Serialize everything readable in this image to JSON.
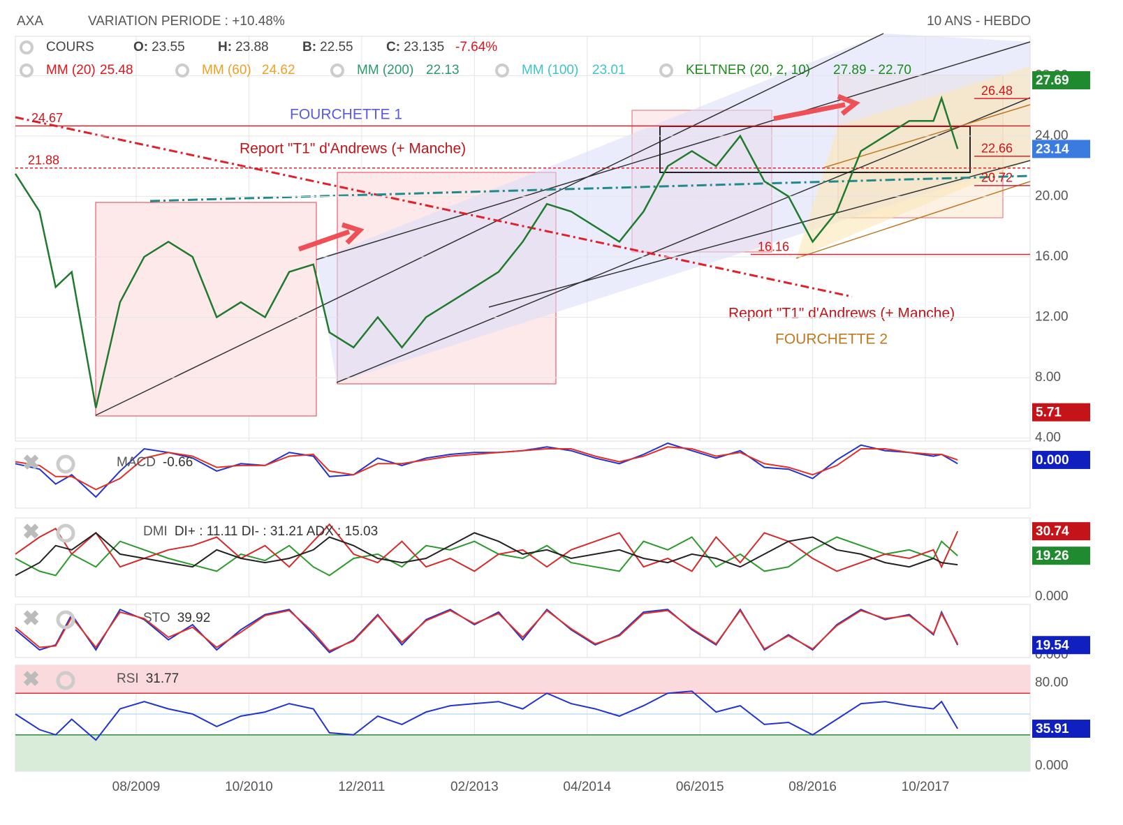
{
  "header": {
    "symbol": "AXA",
    "variation": "VARIATION PERIODE : +10.48%",
    "period": "10 ANS - HEBDO"
  },
  "legend": {
    "cours": {
      "label": "COURS",
      "items": [
        {
          "key": "O:",
          "value": 23.55
        },
        {
          "key": "H:",
          "value": 23.88
        },
        {
          "key": "B:",
          "value": 22.55
        },
        {
          "key": "C:",
          "value": 23.135
        }
      ],
      "change": "-7.64%"
    },
    "indicators": [
      {
        "label": "MM (20)",
        "value": 25.48,
        "color": "#e0141a"
      },
      {
        "label": "MM (60)",
        "value": 24.62,
        "color": "#f0a020"
      },
      {
        "label": "MM (200)",
        "value": 22.13,
        "color": "#2a9a6a"
      },
      {
        "label": "MM (100)",
        "value": 23.01,
        "color": "#3cc4cc"
      },
      {
        "label": "KELTNER (20, 2, 10)",
        "value": "27.89 - 22.70",
        "color": "#1a8a1a"
      }
    ]
  },
  "annotations": [
    "FOURCHETTE 1",
    "Report \"T1\" d'Andrews (+ Manche)",
    "Report \"T1\" d'Andrews (+ Manche)",
    "FOURCHETTE 2"
  ],
  "chart_data": [
    {
      "type": "line",
      "x": [
        "2008-05",
        "2008-08",
        "2008-10",
        "2008-12",
        "2009-03",
        "2009-06",
        "2009-09",
        "2009-12",
        "2010-03",
        "2010-06",
        "2010-09",
        "2010-12",
        "2011-03",
        "2011-06",
        "2011-08",
        "2011-11",
        "2012-02",
        "2012-05",
        "2012-08",
        "2012-11",
        "2013-02",
        "2013-05",
        "2013-08",
        "2013-11",
        "2014-02",
        "2014-05",
        "2014-08",
        "2014-11",
        "2015-02",
        "2015-05",
        "2015-08",
        "2015-11",
        "2016-02",
        "2016-05",
        "2016-08",
        "2016-11",
        "2017-02",
        "2017-05",
        "2017-08",
        "2017-11",
        "2017-12",
        "2018-02"
      ],
      "xlim": [
        "2008-05",
        "2018-11"
      ],
      "xticks": [
        {
          "value": "2009-08",
          "label": "08/2009"
        },
        {
          "value": "2010-10",
          "label": "10/2010"
        },
        {
          "value": "2011-12",
          "label": "12/2011"
        },
        {
          "value": "2013-02",
          "label": "02/2013"
        },
        {
          "value": "2014-04",
          "label": "04/2014"
        },
        {
          "value": "2015-06",
          "label": "06/2015"
        },
        {
          "value": "2016-08",
          "label": "08/2016"
        },
        {
          "value": "2017-10",
          "label": "10/2017"
        }
      ],
      "series": [
        {
          "name": "COURS",
          "color": "#1f7a2e",
          "values": [
            21.5,
            19,
            14,
            15,
            6,
            13,
            16,
            17,
            16,
            12,
            13,
            12,
            15,
            15.5,
            11,
            10,
            12,
            10,
            12,
            13,
            14,
            15,
            17,
            19.5,
            19,
            18,
            17,
            19,
            22,
            23,
            22,
            24,
            21,
            20,
            17,
            19,
            23,
            24,
            25,
            25,
            26.5,
            23.14
          ]
        }
      ],
      "ylim": [
        3.8,
        30.6
      ],
      "yticks": [
        {
          "value": 4,
          "label": "4.00"
        },
        {
          "value": 8,
          "label": "8.00"
        },
        {
          "value": 12,
          "label": "12.00"
        },
        {
          "value": 16,
          "label": "16.00"
        },
        {
          "value": 20,
          "label": "20.00"
        },
        {
          "value": 24,
          "label": "24.00"
        },
        {
          "value": 28,
          "label": "28.00"
        }
      ],
      "levels": [
        24.67,
        21.88,
        26.48,
        22.66,
        20.72,
        16.16
      ],
      "badges": [
        {
          "value": 27.69,
          "color": "#1f8a2e"
        },
        {
          "value": 23.14,
          "color": "#3a7be0"
        },
        {
          "value": 5.71,
          "color": "#c4141a"
        }
      ],
      "grid": true
    },
    {
      "type": "line",
      "title": "MACD",
      "value": -0.66,
      "series": [
        {
          "color": "#2233cc",
          "values": [
            -0.2,
            -0.5,
            -1.3,
            -0.8,
            -2.0,
            -0.6,
            0.6,
            0.4,
            0.1,
            -0.6,
            -0.2,
            -0.3,
            0.4,
            0.2,
            -0.9,
            -0.8,
            0.1,
            -0.3,
            0.1,
            0.3,
            0.4,
            0.4,
            0.5,
            0.7,
            0.5,
            0.1,
            -0.2,
            0.3,
            0.9,
            0.5,
            0.1,
            0.5,
            -0.4,
            -0.5,
            -1.0,
            0.0,
            0.8,
            0.5,
            0.4,
            0.2,
            0.3,
            -0.2
          ]
        },
        {
          "color": "#e0302a",
          "values": [
            -0.1,
            -0.3,
            -0.9,
            -0.9,
            -1.6,
            -1.0,
            0.1,
            0.4,
            0.2,
            -0.4,
            -0.3,
            -0.3,
            0.2,
            0.3,
            -0.6,
            -0.8,
            -0.2,
            -0.2,
            0.0,
            0.2,
            0.3,
            0.4,
            0.5,
            0.6,
            0.6,
            0.2,
            -0.1,
            0.2,
            0.7,
            0.6,
            0.2,
            0.4,
            -0.2,
            -0.4,
            -0.8,
            -0.3,
            0.6,
            0.6,
            0.4,
            0.3,
            0.3,
            0.0
          ]
        }
      ],
      "ylim": [
        -2.6,
        0.6
      ],
      "badges": [
        {
          "value": 0,
          "label": "0.000",
          "color": "#1020c0"
        }
      ]
    },
    {
      "type": "line",
      "title": "DMI",
      "summary": "DI+ : 11.11 DI- : 31.21 ADX : 15.03",
      "series": [
        {
          "color": "#2a9a2a",
          "values": [
            18,
            12,
            10,
            20,
            14,
            26,
            22,
            18,
            15,
            12,
            20,
            17,
            24,
            14,
            10,
            18,
            20,
            14,
            24,
            22,
            26,
            20,
            18,
            24,
            16,
            14,
            12,
            26,
            22,
            28,
            14,
            20,
            12,
            14,
            22,
            28,
            24,
            20,
            22,
            18,
            26,
            19.26
          ]
        },
        {
          "color": "#d42a2a",
          "values": [
            20,
            28,
            32,
            20,
            30,
            14,
            18,
            22,
            24,
            28,
            18,
            24,
            14,
            26,
            34,
            20,
            16,
            26,
            14,
            18,
            12,
            20,
            22,
            14,
            22,
            26,
            30,
            14,
            18,
            12,
            28,
            16,
            30,
            26,
            18,
            12,
            16,
            20,
            18,
            22,
            14,
            30.74
          ]
        },
        {
          "color": "#222222",
          "values": [
            10,
            16,
            24,
            22,
            30,
            20,
            18,
            16,
            14,
            22,
            18,
            16,
            18,
            22,
            28,
            24,
            18,
            16,
            18,
            24,
            30,
            26,
            20,
            22,
            18,
            20,
            22,
            18,
            16,
            20,
            18,
            14,
            20,
            26,
            28,
            22,
            20,
            16,
            14,
            18,
            16,
            15.03
          ]
        }
      ],
      "ylim": [
        0,
        37
      ],
      "yticks": [
        {
          "value": 0,
          "label": "0.000"
        }
      ],
      "badges": [
        {
          "value": 30.74,
          "color": "#c4141a"
        },
        {
          "value": 19.26,
          "color": "#1f8a2e"
        }
      ]
    },
    {
      "type": "line",
      "title": "STO",
      "value": 39.92,
      "series": [
        {
          "color": "#2233cc",
          "values": [
            50,
            10,
            20,
            80,
            10,
            90,
            70,
            30,
            60,
            10,
            50,
            80,
            90,
            40,
            5,
            30,
            80,
            20,
            70,
            90,
            60,
            85,
            30,
            90,
            50,
            20,
            40,
            85,
            90,
            50,
            20,
            90,
            10,
            40,
            10,
            60,
            90,
            70,
            80,
            40,
            85,
            19.54
          ]
        },
        {
          "color": "#e0302a",
          "values": [
            55,
            15,
            18,
            75,
            15,
            85,
            72,
            35,
            55,
            15,
            45,
            78,
            88,
            45,
            8,
            28,
            78,
            25,
            68,
            88,
            62,
            82,
            35,
            88,
            52,
            22,
            38,
            82,
            88,
            52,
            22,
            88,
            12,
            38,
            12,
            58,
            88,
            72,
            78,
            42,
            82,
            22
          ]
        }
      ],
      "ylim": [
        -5,
        100
      ],
      "yticks": [
        {
          "value": 0,
          "label": "0.000"
        }
      ],
      "badges": [
        {
          "value": 19.54,
          "color": "#1020c0"
        }
      ]
    },
    {
      "type": "line",
      "title": "RSI",
      "value": 31.77,
      "series": [
        {
          "color": "#2233cc",
          "values": [
            50,
            35,
            30,
            45,
            25,
            55,
            62,
            55,
            50,
            38,
            48,
            52,
            60,
            55,
            32,
            30,
            48,
            40,
            52,
            58,
            60,
            62,
            55,
            70,
            60,
            55,
            48,
            58,
            70,
            72,
            52,
            58,
            40,
            42,
            30,
            45,
            60,
            62,
            58,
            55,
            62,
            35.91
          ]
        }
      ],
      "ylim": [
        -5,
        97
      ],
      "yticks": [
        {
          "value": 0,
          "label": "0.000"
        },
        {
          "value": 80,
          "label": "80.00"
        }
      ],
      "overbought": 70,
      "oversold": 30,
      "midline": 50,
      "badges": [
        {
          "value": 35.91,
          "color": "#1020c0"
        }
      ]
    }
  ]
}
